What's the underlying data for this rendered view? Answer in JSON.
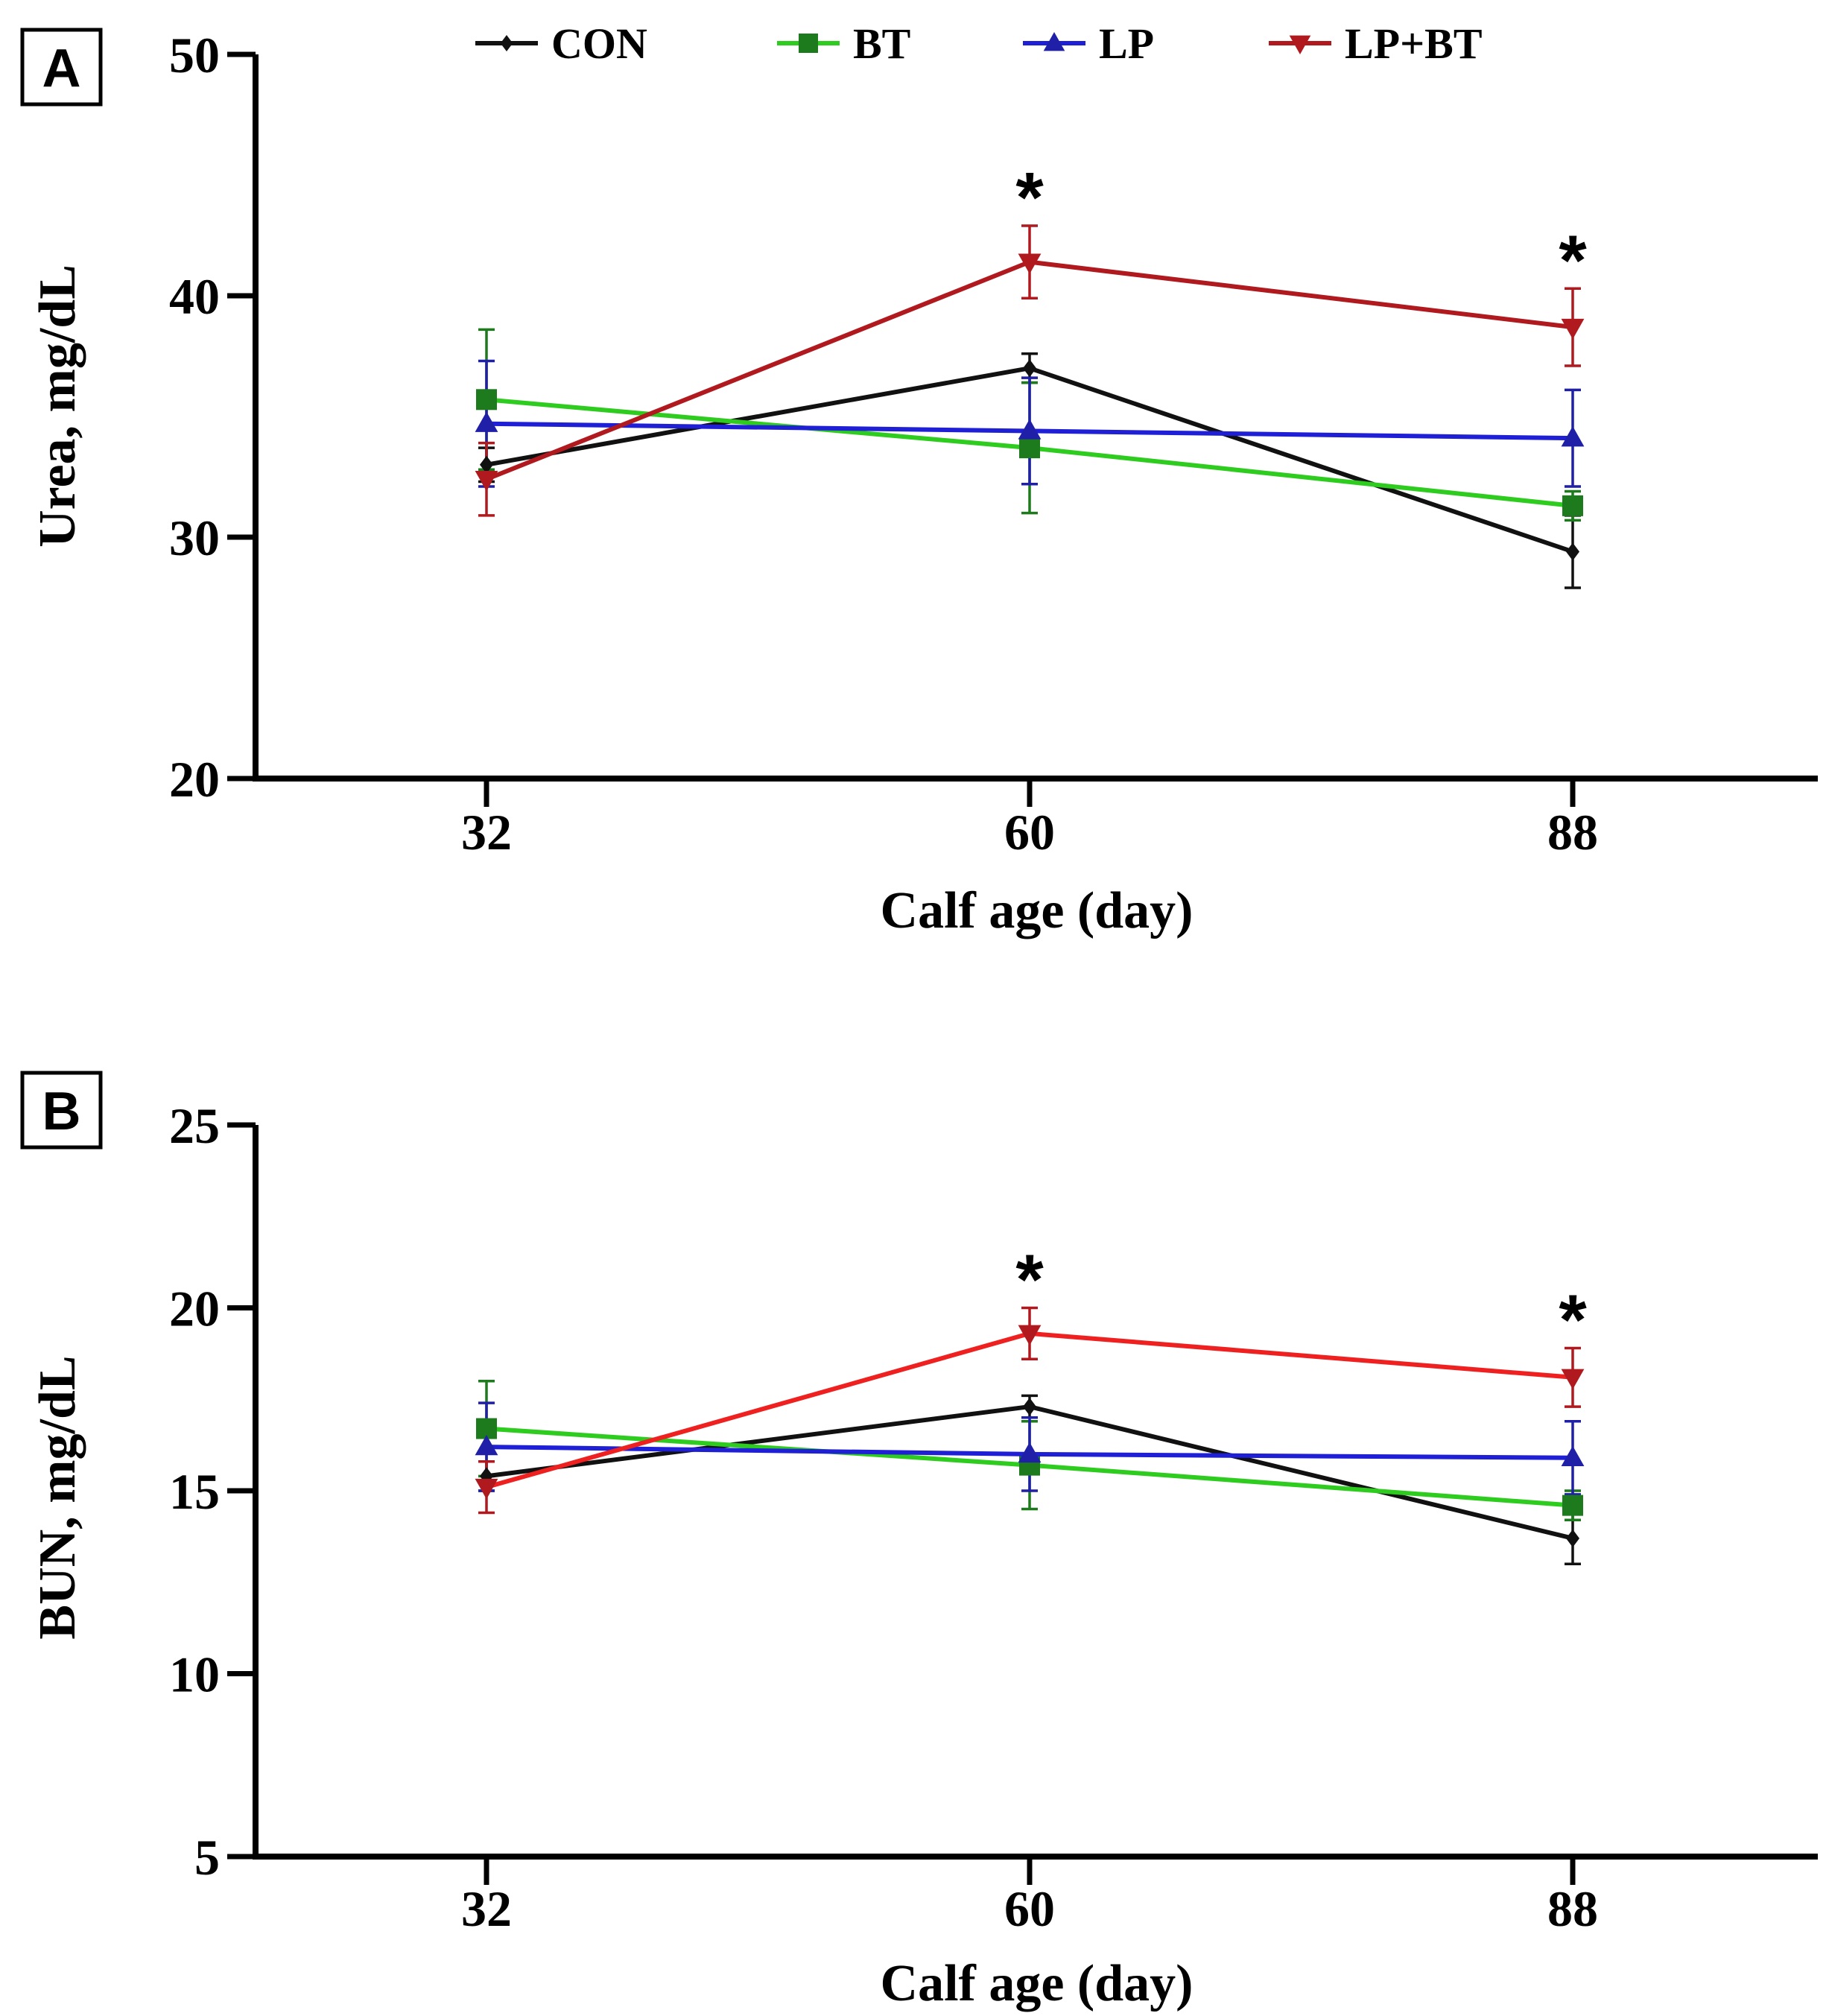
{
  "legend": [
    {
      "name": "CON",
      "color": "#111111",
      "marker": "diamond"
    },
    {
      "name": "BT",
      "color": "#2ecc1f",
      "marker": "square",
      "marker_color": "#1d7a1d"
    },
    {
      "name": "LP",
      "color": "#1f1fd6",
      "marker": "triangle-up",
      "marker_color": "#1f1fa8"
    },
    {
      "name": "LP+BT",
      "color": "#b0191e",
      "marker": "triangle-down",
      "marker_color": "#b0191e"
    }
  ],
  "chart_data": [
    {
      "type": "line",
      "panel_label": "A",
      "title": "",
      "xlabel": "Calf age (day)",
      "ylabel": "Urea, mg/dL",
      "categories": [
        "32",
        "60",
        "88"
      ],
      "ylim": [
        20,
        50
      ],
      "yticks": [
        "20",
        "30",
        "40",
        "50"
      ],
      "significance_marks": [
        {
          "category": "60",
          "label": "*"
        },
        {
          "category": "88",
          "label": "*"
        }
      ],
      "series": [
        {
          "name": "CON",
          "color": "#111111",
          "marker": "diamond",
          "values": [
            33.0,
            37.0,
            29.4
          ],
          "errors": [
            0.7,
            0.6,
            1.5
          ]
        },
        {
          "name": "BT",
          "color": "#2ecc1f",
          "marker_color": "#1d7a1d",
          "marker": "square",
          "values": [
            35.7,
            33.7,
            31.3
          ],
          "errors": [
            2.9,
            2.7,
            0.6
          ]
        },
        {
          "name": "LP",
          "color": "#1f1fd6",
          "marker_color": "#1f1fa8",
          "marker": "triangle-up",
          "values": [
            34.7,
            34.4,
            34.1
          ],
          "errors": [
            2.6,
            2.2,
            2.0
          ]
        },
        {
          "name": "LP+BT",
          "color": "#b0191e",
          "marker_color": "#b0191e",
          "marker": "triangle-down",
          "values": [
            32.4,
            41.4,
            38.7
          ],
          "errors": [
            1.5,
            1.5,
            1.6
          ]
        }
      ]
    },
    {
      "type": "line",
      "panel_label": "B",
      "title": "",
      "xlabel": "Calf age (day)",
      "ylabel": "BUN, mg/dL",
      "categories": [
        "32",
        "60",
        "88"
      ],
      "ylim": [
        5,
        25
      ],
      "yticks": [
        "5",
        "10",
        "15",
        "20",
        "25"
      ],
      "significance_marks": [
        {
          "category": "60",
          "label": "*"
        },
        {
          "category": "88",
          "label": "*"
        }
      ],
      "series": [
        {
          "name": "CON",
          "color": "#111111",
          "marker": "diamond",
          "values": [
            15.4,
            17.3,
            13.7
          ],
          "errors": [
            0.4,
            0.3,
            0.7
          ]
        },
        {
          "name": "BT",
          "color": "#2ecc1f",
          "marker_color": "#1d7a1d",
          "marker": "square",
          "values": [
            16.7,
            15.7,
            14.6
          ],
          "errors": [
            1.3,
            1.2,
            0.4
          ]
        },
        {
          "name": "LP",
          "color": "#1f1fd6",
          "marker_color": "#1f1fa8",
          "marker": "triangle-up",
          "values": [
            16.2,
            16.0,
            15.9
          ],
          "errors": [
            1.2,
            1.0,
            1.0
          ]
        },
        {
          "name": "LP+BT",
          "color": "#ee2020",
          "marker_color": "#b0191e",
          "marker": "triangle-down",
          "values": [
            15.1,
            19.3,
            18.1
          ],
          "errors": [
            0.7,
            0.7,
            0.8
          ]
        }
      ]
    }
  ]
}
